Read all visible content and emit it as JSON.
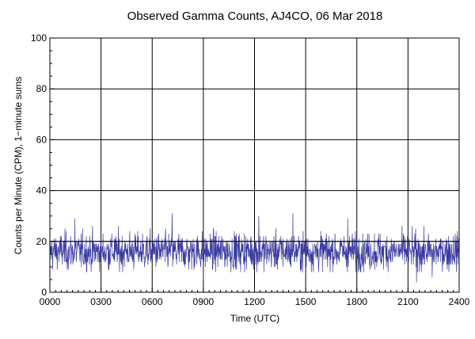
{
  "chart_data": {
    "type": "line",
    "title": "Observed Gamma Counts, AJ4CO, 06 Mar 2018",
    "xlabel": "Time (UTC)",
    "ylabel": "Counts per Minute (CPM), 1−minute sums",
    "xlim": [
      0,
      1440
    ],
    "ylim": [
      0,
      100
    ],
    "x_tick_values": [
      0,
      180,
      360,
      540,
      720,
      900,
      1080,
      1260,
      1440
    ],
    "x_ticks": [
      "0000",
      "0300",
      "0600",
      "0900",
      "1200",
      "1500",
      "1800",
      "2100",
      "2400"
    ],
    "y_ticks": [
      "0",
      "20",
      "40",
      "60",
      "80",
      "100"
    ],
    "y_tick_values": [
      0,
      20,
      40,
      60,
      80,
      100
    ],
    "grid": true,
    "reference_line": 20,
    "series": [
      {
        "color": "#3a3aa0",
        "sampling": "1-minute sums",
        "minutes": 1440,
        "mean": 16,
        "typical_range": [
          8,
          26
        ],
        "min": 4,
        "max": 31,
        "notable_points": [
          {
            "x": 88,
            "y": 29
          },
          {
            "x": 430,
            "y": 31
          },
          {
            "x": 540,
            "y": 5
          },
          {
            "x": 735,
            "y": 30
          },
          {
            "x": 855,
            "y": 31
          },
          {
            "x": 1048,
            "y": 29
          },
          {
            "x": 1290,
            "y": 4
          },
          {
            "x": 1345,
            "y": 6
          }
        ]
      }
    ]
  }
}
